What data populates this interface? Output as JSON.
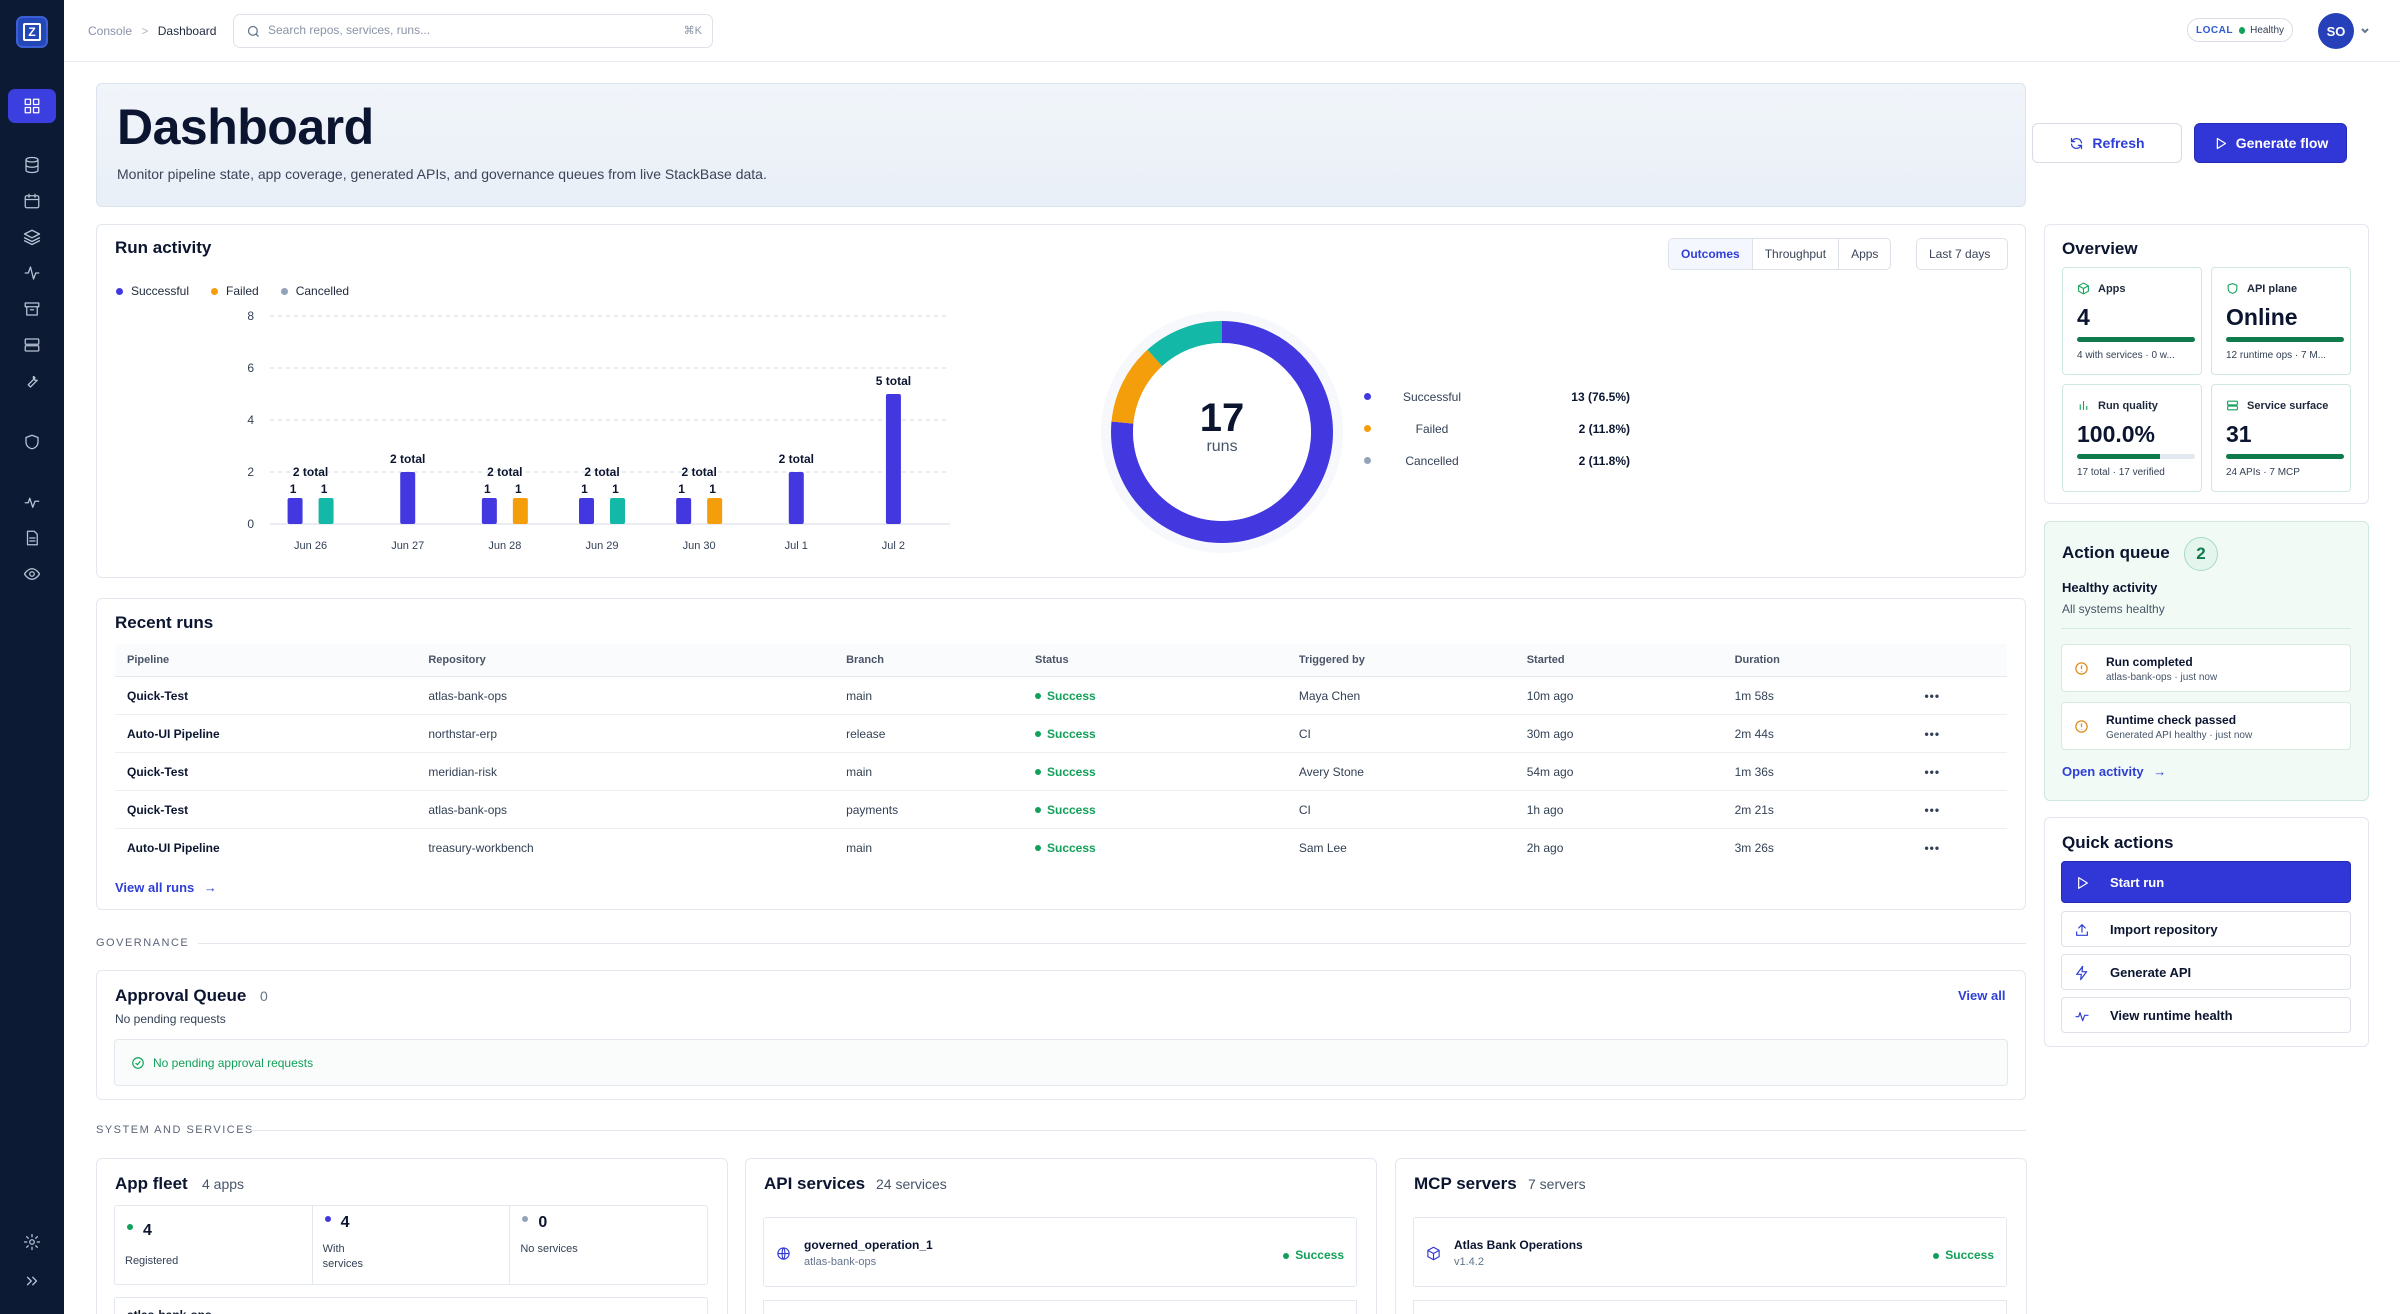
{
  "app": {
    "logo_letter": "Z"
  },
  "breadcrumb": {
    "parent": "Console",
    "separator": ">",
    "current": "Dashboard"
  },
  "search": {
    "placeholder": "Search repos, services, runs...",
    "shortcut": "⌘K"
  },
  "env": {
    "label": "LOCAL",
    "status": "Healthy",
    "status_color": "#12a05a"
  },
  "user": {
    "initials": "SO"
  },
  "hero": {
    "title": "Dashboard",
    "subtitle": "Monitor pipeline state, app coverage, generated APIs, and governance queues from live StackBase data.",
    "refresh_label": "Refresh",
    "generate_label": "Generate flow"
  },
  "colors": {
    "accent": "#3037d6",
    "successful": "#4338e0",
    "failed": "#f59e0b",
    "cancelled": "#94a3b8",
    "teal": "#14b8a6",
    "success_text": "#12a05a"
  },
  "run_activity": {
    "title": "Run activity",
    "tabs": [
      "Outcomes",
      "Throughput",
      "Apps"
    ],
    "active_tab": "Outcomes",
    "range_label": "Last 7 days",
    "legend": [
      "Successful",
      "Failed",
      "Cancelled"
    ]
  },
  "chart_data": {
    "type": "bar",
    "categories": [
      "Jun 26",
      "Jun 27",
      "Jun 28",
      "Jun 29",
      "Jun 30",
      "Jul 1",
      "Jul 2"
    ],
    "ylim": [
      0,
      8
    ],
    "yticks": [
      0,
      2,
      4,
      6,
      8
    ],
    "grid": true,
    "groups": [
      {
        "total_label": "2 total",
        "bars": [
          {
            "value": 1,
            "color": "#4338e0",
            "label": "1"
          },
          {
            "value": 1,
            "color": "#14b8a6",
            "label": "1"
          }
        ]
      },
      {
        "total_label": "2 total",
        "bars": [
          {
            "value": 2,
            "color": "#4338e0"
          }
        ]
      },
      {
        "total_label": "2 total",
        "bars": [
          {
            "value": 1,
            "color": "#4338e0",
            "label": "1"
          },
          {
            "value": 1,
            "color": "#f59e0b",
            "label": "1"
          }
        ]
      },
      {
        "total_label": "2 total",
        "bars": [
          {
            "value": 1,
            "color": "#4338e0",
            "label": "1"
          },
          {
            "value": 1,
            "color": "#14b8a6",
            "label": "1"
          }
        ]
      },
      {
        "total_label": "2 total",
        "bars": [
          {
            "value": 1,
            "color": "#4338e0",
            "label": "1"
          },
          {
            "value": 1,
            "color": "#f59e0b",
            "label": "1"
          }
        ]
      },
      {
        "total_label": "2 total",
        "bars": [
          {
            "value": 2,
            "color": "#4338e0"
          }
        ]
      },
      {
        "total_label": "5 total",
        "bars": [
          {
            "value": 5,
            "color": "#4338e0"
          }
        ]
      }
    ],
    "donut": {
      "center_value": "17",
      "center_label": "runs",
      "slices": [
        {
          "name": "Successful",
          "value": 13,
          "pct_label": "13 (76.5%)",
          "color": "#4338e0"
        },
        {
          "name": "Failed",
          "value": 2,
          "pct_label": "2 (11.8%)",
          "color": "#f59e0b"
        },
        {
          "name": "Cancelled",
          "value": 2,
          "pct_label": "2 (11.8%)",
          "color": "#14b8a6",
          "dot_color": "#94a3b8"
        }
      ]
    }
  },
  "recent_runs": {
    "title": "Recent runs",
    "columns": [
      "Pipeline",
      "Repository",
      "Branch",
      "Status",
      "Triggered by",
      "Started",
      "Duration"
    ],
    "rows": [
      {
        "pipeline": "Quick-Test",
        "repo": "atlas-bank-ops",
        "branch": "main",
        "status": "Success",
        "by": "Maya Chen",
        "started": "10m ago",
        "duration": "1m 58s"
      },
      {
        "pipeline": "Auto-UI Pipeline",
        "repo": "northstar-erp",
        "branch": "release",
        "status": "Success",
        "by": "CI",
        "started": "30m ago",
        "duration": "2m 44s"
      },
      {
        "pipeline": "Quick-Test",
        "repo": "meridian-risk",
        "branch": "main",
        "status": "Success",
        "by": "Avery Stone",
        "started": "54m ago",
        "duration": "1m 36s"
      },
      {
        "pipeline": "Quick-Test",
        "repo": "atlas-bank-ops",
        "branch": "payments",
        "status": "Success",
        "by": "CI",
        "started": "1h ago",
        "duration": "2m 21s"
      },
      {
        "pipeline": "Auto-UI Pipeline",
        "repo": "treasury-workbench",
        "branch": "main",
        "status": "Success",
        "by": "Sam Lee",
        "started": "2h ago",
        "duration": "3m 26s"
      }
    ],
    "more_glyph": "•••",
    "view_all": "View all runs"
  },
  "governance": {
    "section_label": "GOVERNANCE",
    "title": "Approval Queue",
    "count": "0",
    "subtitle": "No pending requests",
    "view_all": "View all",
    "empty": "No pending approval requests"
  },
  "systems": {
    "section_label": "SYSTEM AND SERVICES",
    "app_fleet": {
      "title": "App fleet",
      "count": "4 apps",
      "stats": [
        {
          "value": "4",
          "label": "Registered",
          "color": "#12a05a"
        },
        {
          "value": "4",
          "label": "With services",
          "color": "#4338e0"
        },
        {
          "value": "0",
          "label": "No services",
          "color": "#94a3b8"
        }
      ],
      "first_app": "atlas-bank-ops"
    },
    "api_services": {
      "title": "API services",
      "count": "24 services",
      "item": {
        "name": "governed_operation_1",
        "sub": "atlas-bank-ops",
        "status": "Success"
      }
    },
    "mcp_servers": {
      "title": "MCP servers",
      "count": "7 servers",
      "item": {
        "name": "Atlas Bank Operations",
        "sub": "v1.4.2",
        "status": "Success"
      }
    }
  },
  "overview": {
    "title": "Overview",
    "kpis": [
      {
        "label": "Apps",
        "value": "4",
        "sub": "4 with services · 0 w...",
        "fill": 1.0,
        "icon": "box-icon"
      },
      {
        "label": "API plane",
        "value": "Online",
        "sub": "12 runtime ops · 7 M...",
        "fill": 1.0,
        "icon": "shield-icon"
      },
      {
        "label": "Run quality",
        "value": "100.0%",
        "sub": "17 total · 17 verified",
        "fill": 0.7,
        "icon": "bar-chart-icon"
      },
      {
        "label": "Service surface",
        "value": "31",
        "sub": "24 APIs · 7 MCP",
        "fill": 1.0,
        "icon": "server-icon"
      }
    ]
  },
  "action_queue": {
    "title": "Action queue",
    "count": "2",
    "headline": "Healthy activity",
    "sub": "All systems healthy",
    "items": [
      {
        "title": "Run completed",
        "sub": "atlas-bank-ops · just now"
      },
      {
        "title": "Runtime check passed",
        "sub": "Generated API healthy · just now"
      }
    ],
    "open": "Open activity"
  },
  "quick_actions": {
    "title": "Quick actions",
    "items": [
      "Start run",
      "Import repository",
      "Generate API",
      "View runtime health"
    ]
  }
}
